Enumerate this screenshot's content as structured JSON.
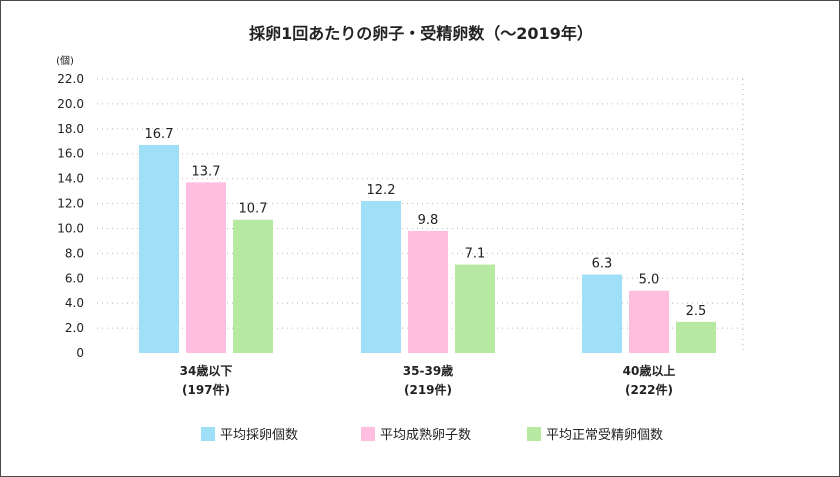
{
  "chart_data": {
    "type": "bar",
    "title": "採卵1回あたりの卵子・受精卵数（〜2019年）",
    "ylabel": "(個)",
    "xlabel": "",
    "ylim": [
      0,
      22
    ],
    "yticks": [
      "0",
      "2.0",
      "4.0",
      "6.0",
      "8.0",
      "10.0",
      "12.0",
      "14.0",
      "16.0",
      "18.0",
      "20.0",
      "22.0"
    ],
    "grid": true,
    "legend_position": "bottom",
    "categories": [
      {
        "line1": "34歳以下",
        "line2": "(197件)"
      },
      {
        "line1": "35-39歳",
        "line2": "(219件)"
      },
      {
        "line1": "40歳以上",
        "line2": "(222件)"
      }
    ],
    "series": [
      {
        "name": "平均採卵個数",
        "color": "#9fdff8",
        "values": [
          16.7,
          12.2,
          6.3
        ],
        "labels": [
          "16.7",
          "12.2",
          "6.3"
        ]
      },
      {
        "name": "平均成熟卵子数",
        "color": "#ffbde0",
        "values": [
          13.7,
          9.8,
          5.0
        ],
        "labels": [
          "13.7",
          "9.8",
          "5.0"
        ]
      },
      {
        "name": "平均正常受精卵個数",
        "color": "#b8e9a2",
        "values": [
          10.7,
          7.1,
          2.5
        ],
        "labels": [
          "10.7",
          "7.1",
          "2.5"
        ]
      }
    ]
  }
}
